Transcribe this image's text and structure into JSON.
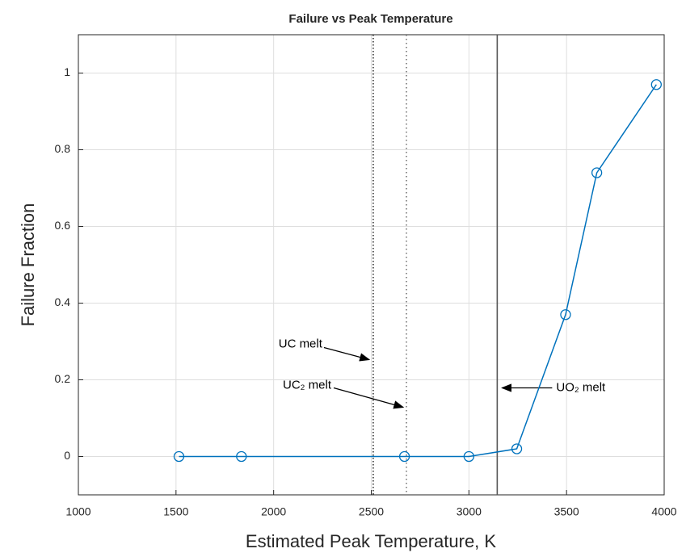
{
  "chart_data": {
    "type": "line",
    "title": "Failure vs Peak Temperature",
    "xlabel": "Estimated Peak Temperature, K",
    "ylabel": "Failure Fraction",
    "series": [
      {
        "name": "Failure fraction",
        "color": "#0072bd",
        "x": [
          1515,
          1835,
          2670,
          3000,
          3245,
          3495,
          3655,
          3960
        ],
        "values": [
          0,
          0,
          0,
          0,
          0.02,
          0.37,
          0.74,
          0.97
        ]
      }
    ],
    "xlim": [
      1000,
      4000
    ],
    "xticks": [
      1000,
      1500,
      2000,
      2500,
      3000,
      3500,
      4000
    ],
    "ylim": [
      -0.1,
      1.1
    ],
    "yticks": [
      0,
      0.2,
      0.4,
      0.6,
      0.8,
      1
    ],
    "grid": true,
    "reference_lines": [
      {
        "x": 2510,
        "label": "UC melt",
        "style": "dense-dotted"
      },
      {
        "x": 2680,
        "label": "UC₂ melt",
        "style": "dotted"
      },
      {
        "x": 3145,
        "label": "UO₂ melt",
        "style": "solid"
      }
    ]
  }
}
